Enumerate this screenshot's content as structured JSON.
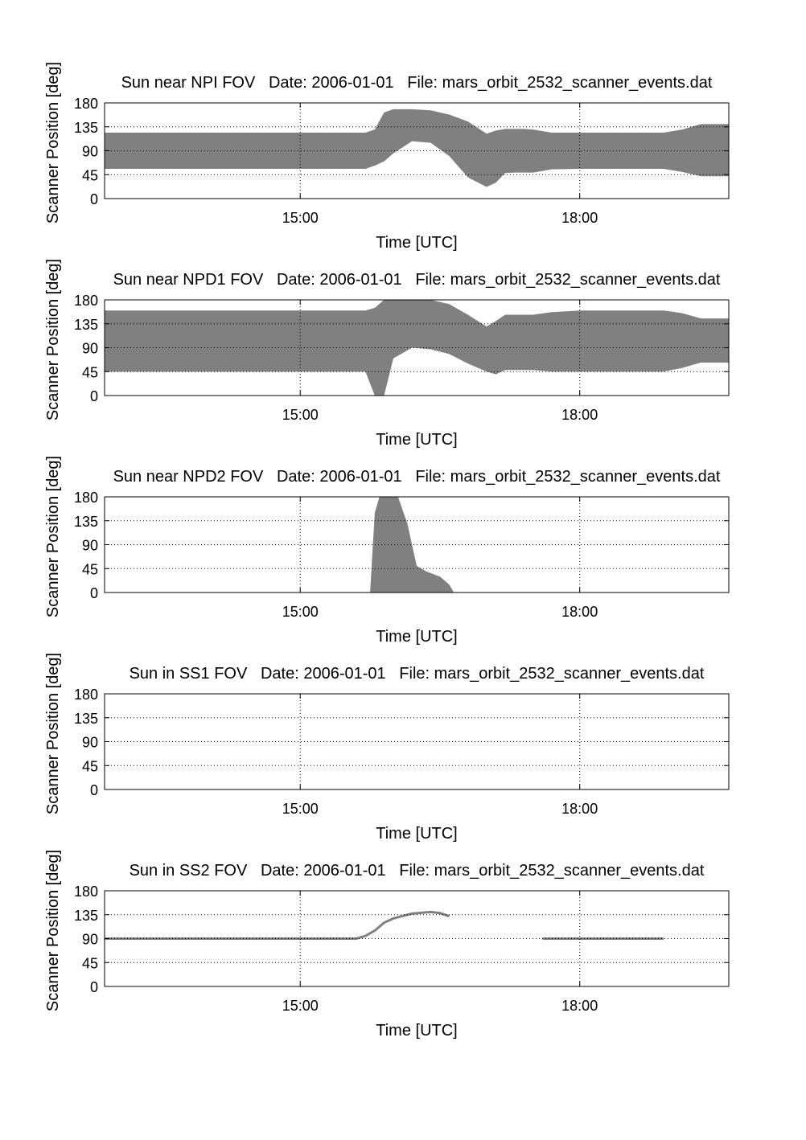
{
  "page": {
    "background": "#ffffff"
  },
  "style": {
    "fill_color": "#808080",
    "line_color": "#808080",
    "axes_color": "#000000",
    "grid_color": "#000000"
  },
  "chart_data": [
    {
      "type": "area",
      "title": "Sun near NPI FOV   Date: 2006-01-01   File: mars_orbit_2532_scanner_events.dat",
      "xlabel": "Time [UTC]",
      "ylabel": "Scanner Position [deg]",
      "x_unit": "hours UTC",
      "xlim": [
        12.9,
        19.6
      ],
      "ylim": [
        0,
        180
      ],
      "xticks": [
        15,
        18
      ],
      "xtick_labels": [
        "15:00",
        "18:00"
      ],
      "yticks": [
        0,
        45,
        90,
        135,
        180
      ],
      "ytick_labels": [
        "0",
        "45",
        "90",
        "135",
        "180"
      ],
      "grid": true,
      "bands": [
        {
          "x": [
            12.9,
            15.6,
            15.7,
            15.8,
            15.9,
            16.0,
            16.2,
            16.4,
            16.6,
            16.8,
            17.0,
            17.1,
            17.2,
            17.3,
            17.4,
            17.5,
            17.7,
            18.0,
            18.5,
            18.9,
            19.1,
            19.3,
            19.6
          ],
          "lower": [
            56,
            56,
            56,
            62,
            70,
            85,
            108,
            105,
            80,
            40,
            22,
            30,
            48,
            49,
            49,
            49,
            55,
            56,
            56,
            56,
            50,
            42,
            42
          ],
          "upper": [
            124,
            124,
            124,
            130,
            162,
            168,
            168,
            166,
            158,
            145,
            122,
            128,
            131,
            131,
            131,
            130,
            124,
            124,
            124,
            124,
            130,
            140,
            140
          ]
        }
      ]
    },
    {
      "type": "area",
      "title": "Sun near NPD1 FOV   Date: 2006-01-01   File: mars_orbit_2532_scanner_events.dat",
      "xlabel": "Time [UTC]",
      "ylabel": "Scanner Position [deg]",
      "x_unit": "hours UTC",
      "xlim": [
        12.9,
        19.6
      ],
      "ylim": [
        0,
        180
      ],
      "xticks": [
        15,
        18
      ],
      "xtick_labels": [
        "15:00",
        "18:00"
      ],
      "yticks": [
        0,
        45,
        90,
        135,
        180
      ],
      "ytick_labels": [
        "0",
        "45",
        "90",
        "135",
        "180"
      ],
      "grid": true,
      "bands": [
        {
          "x": [
            12.9,
            15.6,
            15.7,
            15.8,
            15.9,
            16.0,
            16.2,
            16.4,
            16.6,
            16.8,
            17.0,
            17.1,
            17.2,
            17.3,
            17.4,
            17.5,
            17.7,
            18.0,
            18.5,
            18.9,
            19.1,
            19.3,
            19.6
          ],
          "lower": [
            45,
            45,
            45,
            0,
            0,
            70,
            90,
            87,
            78,
            60,
            45,
            40,
            48,
            48,
            48,
            48,
            45,
            45,
            45,
            45,
            52,
            62,
            62
          ],
          "upper": [
            160,
            160,
            160,
            165,
            180,
            180,
            180,
            180,
            172,
            152,
            130,
            140,
            152,
            152,
            152,
            152,
            157,
            160,
            160,
            160,
            155,
            145,
            145
          ]
        }
      ]
    },
    {
      "type": "area",
      "title": "Sun near NPD2 FOV   Date: 2006-01-01   File: mars_orbit_2532_scanner_events.dat",
      "xlabel": "Time [UTC]",
      "ylabel": "Scanner Position [deg]",
      "x_unit": "hours UTC",
      "xlim": [
        12.9,
        19.6
      ],
      "ylim": [
        0,
        180
      ],
      "xticks": [
        15,
        18
      ],
      "xtick_labels": [
        "15:00",
        "18:00"
      ],
      "yticks": [
        0,
        45,
        90,
        135,
        180
      ],
      "ytick_labels": [
        "0",
        "45",
        "90",
        "135",
        "180"
      ],
      "grid": true,
      "bands": [
        {
          "x": [
            15.75,
            15.8,
            15.85,
            15.9,
            16.05,
            16.15,
            16.25,
            16.35,
            16.5,
            16.6,
            16.65
          ],
          "lower": [
            0,
            0,
            0,
            0,
            0,
            0,
            0,
            0,
            0,
            0,
            0
          ],
          "upper": [
            0,
            150,
            180,
            180,
            180,
            130,
            50,
            40,
            30,
            15,
            0
          ]
        }
      ]
    },
    {
      "type": "area",
      "title": "Sun in SS1 FOV   Date: 2006-01-01   File: mars_orbit_2532_scanner_events.dat",
      "xlabel": "Time [UTC]",
      "ylabel": "Scanner Position [deg]",
      "x_unit": "hours UTC",
      "xlim": [
        12.9,
        19.6
      ],
      "ylim": [
        0,
        180
      ],
      "xticks": [
        15,
        18
      ],
      "xtick_labels": [
        "15:00",
        "18:00"
      ],
      "yticks": [
        0,
        45,
        90,
        135,
        180
      ],
      "ytick_labels": [
        "0",
        "45",
        "90",
        "135",
        "180"
      ],
      "grid": true,
      "bands": []
    },
    {
      "type": "line",
      "title": "Sun in SS2 FOV   Date: 2006-01-01   File: mars_orbit_2532_scanner_events.dat",
      "xlabel": "Time [UTC]",
      "ylabel": "Scanner Position [deg]",
      "x_unit": "hours UTC",
      "xlim": [
        12.9,
        19.6
      ],
      "ylim": [
        0,
        180
      ],
      "xticks": [
        15,
        18
      ],
      "xtick_labels": [
        "15:00",
        "18:00"
      ],
      "yticks": [
        0,
        45,
        90,
        135,
        180
      ],
      "ytick_labels": [
        "0",
        "45",
        "90",
        "135",
        "180"
      ],
      "grid": true,
      "lines": [
        {
          "x": [
            12.9,
            15.3,
            15.6,
            15.7,
            15.8,
            15.9,
            16.0,
            16.2,
            16.4,
            16.5,
            16.6
          ],
          "y": [
            90,
            90,
            90,
            95,
            105,
            120,
            128,
            137,
            140,
            138,
            132
          ]
        },
        {
          "x": [
            17.6,
            18.0,
            18.5,
            18.9
          ],
          "y": [
            90,
            90,
            90,
            90
          ]
        }
      ]
    }
  ]
}
